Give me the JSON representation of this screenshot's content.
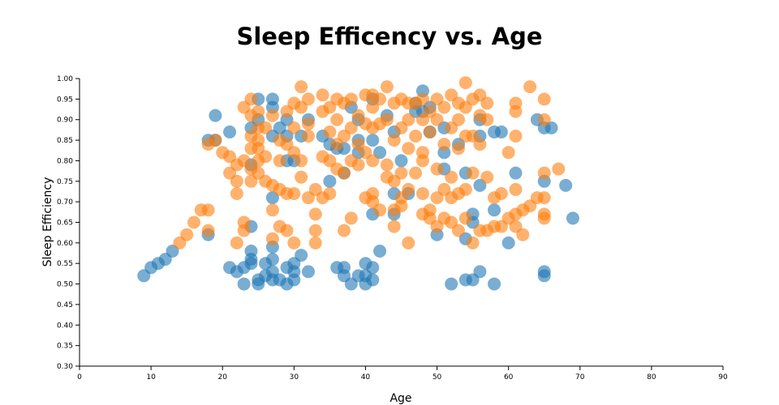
{
  "chart_data": {
    "type": "scatter",
    "title": "Sleep Efficency vs. Age",
    "xlabel": "Age",
    "ylabel": "Sleep Efficiency",
    "xlim": [
      0,
      90
    ],
    "ylim": [
      0.3,
      1.0
    ],
    "x_ticks": [
      "0",
      "10",
      "20",
      "30",
      "40",
      "50",
      "60",
      "70",
      "80",
      "90"
    ],
    "y_ticks": [
      "0.30",
      "0.35",
      "0.40",
      "0.45",
      "0.50",
      "0.55",
      "0.60",
      "0.65",
      "0.70",
      "0.75",
      "0.80",
      "0.85",
      "0.90",
      "0.95",
      "1.00"
    ],
    "grid": false,
    "legend": "none",
    "series": [
      {
        "color": "#1f77b4",
        "opacity": 0.6,
        "points": [
          [
            9,
            0.52
          ],
          [
            10,
            0.54
          ],
          [
            11,
            0.55
          ],
          [
            12,
            0.56
          ],
          [
            13,
            0.58
          ],
          [
            18,
            0.62
          ],
          [
            19,
            0.91
          ],
          [
            18,
            0.85
          ],
          [
            19,
            0.85
          ],
          [
            21,
            0.87
          ],
          [
            21,
            0.54
          ],
          [
            22,
            0.53
          ],
          [
            23,
            0.5
          ],
          [
            23,
            0.54
          ],
          [
            24,
            0.64
          ],
          [
            24,
            0.58
          ],
          [
            24,
            0.56
          ],
          [
            24,
            0.55
          ],
          [
            25,
            0.51
          ],
          [
            25,
            0.5
          ],
          [
            25,
            0.95
          ],
          [
            24,
            0.88
          ],
          [
            24,
            0.79
          ],
          [
            25,
            0.9
          ],
          [
            26,
            0.55
          ],
          [
            26,
            0.52
          ],
          [
            27,
            0.59
          ],
          [
            27,
            0.56
          ],
          [
            27,
            0.53
          ],
          [
            27,
            0.51
          ],
          [
            27,
            0.71
          ],
          [
            27,
            0.95
          ],
          [
            27,
            0.93
          ],
          [
            27,
            0.86
          ],
          [
            28,
            0.88
          ],
          [
            28,
            0.51
          ],
          [
            29,
            0.54
          ],
          [
            29,
            0.5
          ],
          [
            29,
            0.9
          ],
          [
            29,
            0.8
          ],
          [
            29,
            0.86
          ],
          [
            30,
            0.51
          ],
          [
            30,
            0.55
          ],
          [
            30,
            0.53
          ],
          [
            30,
            0.8
          ],
          [
            31,
            0.57
          ],
          [
            31,
            0.86
          ],
          [
            32,
            0.53
          ],
          [
            32,
            0.9
          ],
          [
            34,
            0.86
          ],
          [
            35,
            0.75
          ],
          [
            35,
            0.84
          ],
          [
            36,
            0.54
          ],
          [
            36,
            0.83
          ],
          [
            37,
            0.54
          ],
          [
            37,
            0.52
          ],
          [
            37,
            0.83
          ],
          [
            37,
            0.77
          ],
          [
            38,
            0.5
          ],
          [
            38,
            0.93
          ],
          [
            39,
            0.52
          ],
          [
            39,
            0.85
          ],
          [
            39,
            0.9
          ],
          [
            39,
            0.82
          ],
          [
            40,
            0.55
          ],
          [
            40,
            0.52
          ],
          [
            40,
            0.5
          ],
          [
            41,
            0.54
          ],
          [
            41,
            0.51
          ],
          [
            41,
            0.67
          ],
          [
            41,
            0.95
          ],
          [
            41,
            0.85
          ],
          [
            42,
            0.58
          ],
          [
            42,
            0.82
          ],
          [
            43,
            0.91
          ],
          [
            44,
            0.87
          ],
          [
            44,
            0.72
          ],
          [
            44,
            0.67
          ],
          [
            45,
            0.8
          ],
          [
            46,
            0.72
          ],
          [
            47,
            0.94
          ],
          [
            47,
            0.92
          ],
          [
            48,
            0.97
          ],
          [
            48,
            0.92
          ],
          [
            49,
            0.93
          ],
          [
            49,
            0.87
          ],
          [
            50,
            0.62
          ],
          [
            51,
            0.82
          ],
          [
            51,
            0.78
          ],
          [
            51,
            0.88
          ],
          [
            52,
            0.5
          ],
          [
            53,
            0.84
          ],
          [
            54,
            0.51
          ],
          [
            54,
            0.77
          ],
          [
            54,
            0.61
          ],
          [
            55,
            0.67
          ],
          [
            55,
            0.65
          ],
          [
            55,
            0.51
          ],
          [
            56,
            0.53
          ],
          [
            56,
            0.9
          ],
          [
            56,
            0.86
          ],
          [
            56,
            0.74
          ],
          [
            58,
            0.87
          ],
          [
            58,
            0.68
          ],
          [
            58,
            0.5
          ],
          [
            59,
            0.87
          ],
          [
            60,
            0.6
          ],
          [
            61,
            0.77
          ],
          [
            64,
            0.9
          ],
          [
            65,
            0.88
          ],
          [
            65,
            0.75
          ],
          [
            65,
            0.53
          ],
          [
            65,
            0.52
          ],
          [
            66,
            0.88
          ],
          [
            68,
            0.74
          ],
          [
            69,
            0.66
          ]
        ]
      },
      {
        "color": "#ff7f0e",
        "opacity": 0.6,
        "points": [
          [
            14,
            0.6
          ],
          [
            15,
            0.62
          ],
          [
            16,
            0.65
          ],
          [
            17,
            0.68
          ],
          [
            18,
            0.68
          ],
          [
            18,
            0.63
          ],
          [
            18,
            0.84
          ],
          [
            19,
            0.85
          ],
          [
            20,
            0.82
          ],
          [
            21,
            0.81
          ],
          [
            21,
            0.77
          ],
          [
            22,
            0.79
          ],
          [
            22,
            0.75
          ],
          [
            22,
            0.72
          ],
          [
            22,
            0.6
          ],
          [
            23,
            0.65
          ],
          [
            23,
            0.63
          ],
          [
            23,
            0.8
          ],
          [
            23,
            0.93
          ],
          [
            24,
            0.95
          ],
          [
            24,
            0.91
          ],
          [
            24,
            0.86
          ],
          [
            24,
            0.83
          ],
          [
            24,
            0.78
          ],
          [
            24,
            0.75
          ],
          [
            25,
            0.92
          ],
          [
            25,
            0.88
          ],
          [
            25,
            0.85
          ],
          [
            25,
            0.83
          ],
          [
            25,
            0.8
          ],
          [
            25,
            0.77
          ],
          [
            26,
            0.88
          ],
          [
            26,
            0.81
          ],
          [
            26,
            0.75
          ],
          [
            27,
            0.74
          ],
          [
            27,
            0.68
          ],
          [
            27,
            0.61
          ],
          [
            27,
            0.91
          ],
          [
            28,
            0.85
          ],
          [
            28,
            0.73
          ],
          [
            28,
            0.64
          ],
          [
            28,
            0.8
          ],
          [
            29,
            0.92
          ],
          [
            29,
            0.84
          ],
          [
            29,
            0.72
          ],
          [
            29,
            0.63
          ],
          [
            30,
            0.94
          ],
          [
            30,
            0.88
          ],
          [
            30,
            0.82
          ],
          [
            30,
            0.72
          ],
          [
            30,
            0.6
          ],
          [
            31,
            0.98
          ],
          [
            31,
            0.93
          ],
          [
            31,
            0.8
          ],
          [
            31,
            0.76
          ],
          [
            32,
            0.95
          ],
          [
            32,
            0.89
          ],
          [
            32,
            0.71
          ],
          [
            32,
            0.86
          ],
          [
            33,
            0.73
          ],
          [
            33,
            0.67
          ],
          [
            33,
            0.63
          ],
          [
            33,
            0.6
          ],
          [
            34,
            0.96
          ],
          [
            34,
            0.92
          ],
          [
            34,
            0.71
          ],
          [
            34,
            0.81
          ],
          [
            35,
            0.93
          ],
          [
            35,
            0.87
          ],
          [
            35,
            0.8
          ],
          [
            35,
            0.72
          ],
          [
            36,
            0.95
          ],
          [
            36,
            0.9
          ],
          [
            36,
            0.84
          ],
          [
            36,
            0.78
          ],
          [
            37,
            0.94
          ],
          [
            37,
            0.86
          ],
          [
            37,
            0.77
          ],
          [
            37,
            0.63
          ],
          [
            38,
            0.95
          ],
          [
            38,
            0.88
          ],
          [
            38,
            0.8
          ],
          [
            38,
            0.66
          ],
          [
            39,
            0.91
          ],
          [
            39,
            0.84
          ],
          [
            39,
            0.79
          ],
          [
            40,
            0.96
          ],
          [
            40,
            0.89
          ],
          [
            40,
            0.82
          ],
          [
            40,
            0.71
          ],
          [
            41,
            0.96
          ],
          [
            41,
            0.93
          ],
          [
            41,
            0.88
          ],
          [
            41,
            0.8
          ],
          [
            41,
            0.72
          ],
          [
            41,
            0.7
          ],
          [
            42,
            0.95
          ],
          [
            42,
            0.89
          ],
          [
            42,
            0.68
          ],
          [
            43,
            0.98
          ],
          [
            43,
            0.9
          ],
          [
            43,
            0.79
          ],
          [
            43,
            0.76
          ],
          [
            44,
            0.94
          ],
          [
            44,
            0.85
          ],
          [
            44,
            0.75
          ],
          [
            44,
            0.68
          ],
          [
            44,
            0.64
          ],
          [
            45,
            0.95
          ],
          [
            45,
            0.88
          ],
          [
            45,
            0.77
          ],
          [
            45,
            0.71
          ],
          [
            45,
            0.69
          ],
          [
            46,
            0.94
          ],
          [
            46,
            0.9
          ],
          [
            46,
            0.83
          ],
          [
            46,
            0.73
          ],
          [
            46,
            0.6
          ],
          [
            47,
            0.94
          ],
          [
            47,
            0.86
          ],
          [
            47,
            0.77
          ],
          [
            48,
            0.95
          ],
          [
            48,
            0.9
          ],
          [
            48,
            0.82
          ],
          [
            48,
            0.8
          ],
          [
            48,
            0.72
          ],
          [
            48,
            0.67
          ],
          [
            49,
            0.92
          ],
          [
            49,
            0.87
          ],
          [
            49,
            0.68
          ],
          [
            49,
            0.66
          ],
          [
            50,
            0.95
          ],
          [
            50,
            0.9
          ],
          [
            50,
            0.78
          ],
          [
            50,
            0.71
          ],
          [
            50,
            0.64
          ],
          [
            51,
            0.93
          ],
          [
            51,
            0.84
          ],
          [
            51,
            0.73
          ],
          [
            51,
            0.66
          ],
          [
            52,
            0.96
          ],
          [
            52,
            0.88
          ],
          [
            52,
            0.76
          ],
          [
            52,
            0.71
          ],
          [
            52,
            0.65
          ],
          [
            53,
            0.94
          ],
          [
            53,
            0.9
          ],
          [
            53,
            0.83
          ],
          [
            53,
            0.72
          ],
          [
            53,
            0.63
          ],
          [
            54,
            0.99
          ],
          [
            54,
            0.93
          ],
          [
            54,
            0.86
          ],
          [
            54,
            0.73
          ],
          [
            54,
            0.66
          ],
          [
            55,
            0.95
          ],
          [
            55,
            0.86
          ],
          [
            55,
            0.77
          ],
          [
            55,
            0.6
          ],
          [
            56,
            0.96
          ],
          [
            56,
            0.91
          ],
          [
            56,
            0.84
          ],
          [
            56,
            0.63
          ],
          [
            57,
            0.94
          ],
          [
            57,
            0.9
          ],
          [
            57,
            0.76
          ],
          [
            57,
            0.63
          ],
          [
            58,
            0.71
          ],
          [
            58,
            0.64
          ],
          [
            59,
            0.72
          ],
          [
            59,
            0.64
          ],
          [
            60,
            0.82
          ],
          [
            60,
            0.66
          ],
          [
            61,
            0.94
          ],
          [
            61,
            0.92
          ],
          [
            61,
            0.86
          ],
          [
            61,
            0.73
          ],
          [
            61,
            0.67
          ],
          [
            61,
            0.64
          ],
          [
            62,
            0.68
          ],
          [
            62,
            0.62
          ],
          [
            63,
            0.98
          ],
          [
            63,
            0.69
          ],
          [
            64,
            0.71
          ],
          [
            65,
            0.95
          ],
          [
            65,
            0.9
          ],
          [
            65,
            0.77
          ],
          [
            65,
            0.71
          ],
          [
            65,
            0.67
          ],
          [
            65,
            0.66
          ],
          [
            67,
            0.78
          ]
        ]
      }
    ]
  }
}
